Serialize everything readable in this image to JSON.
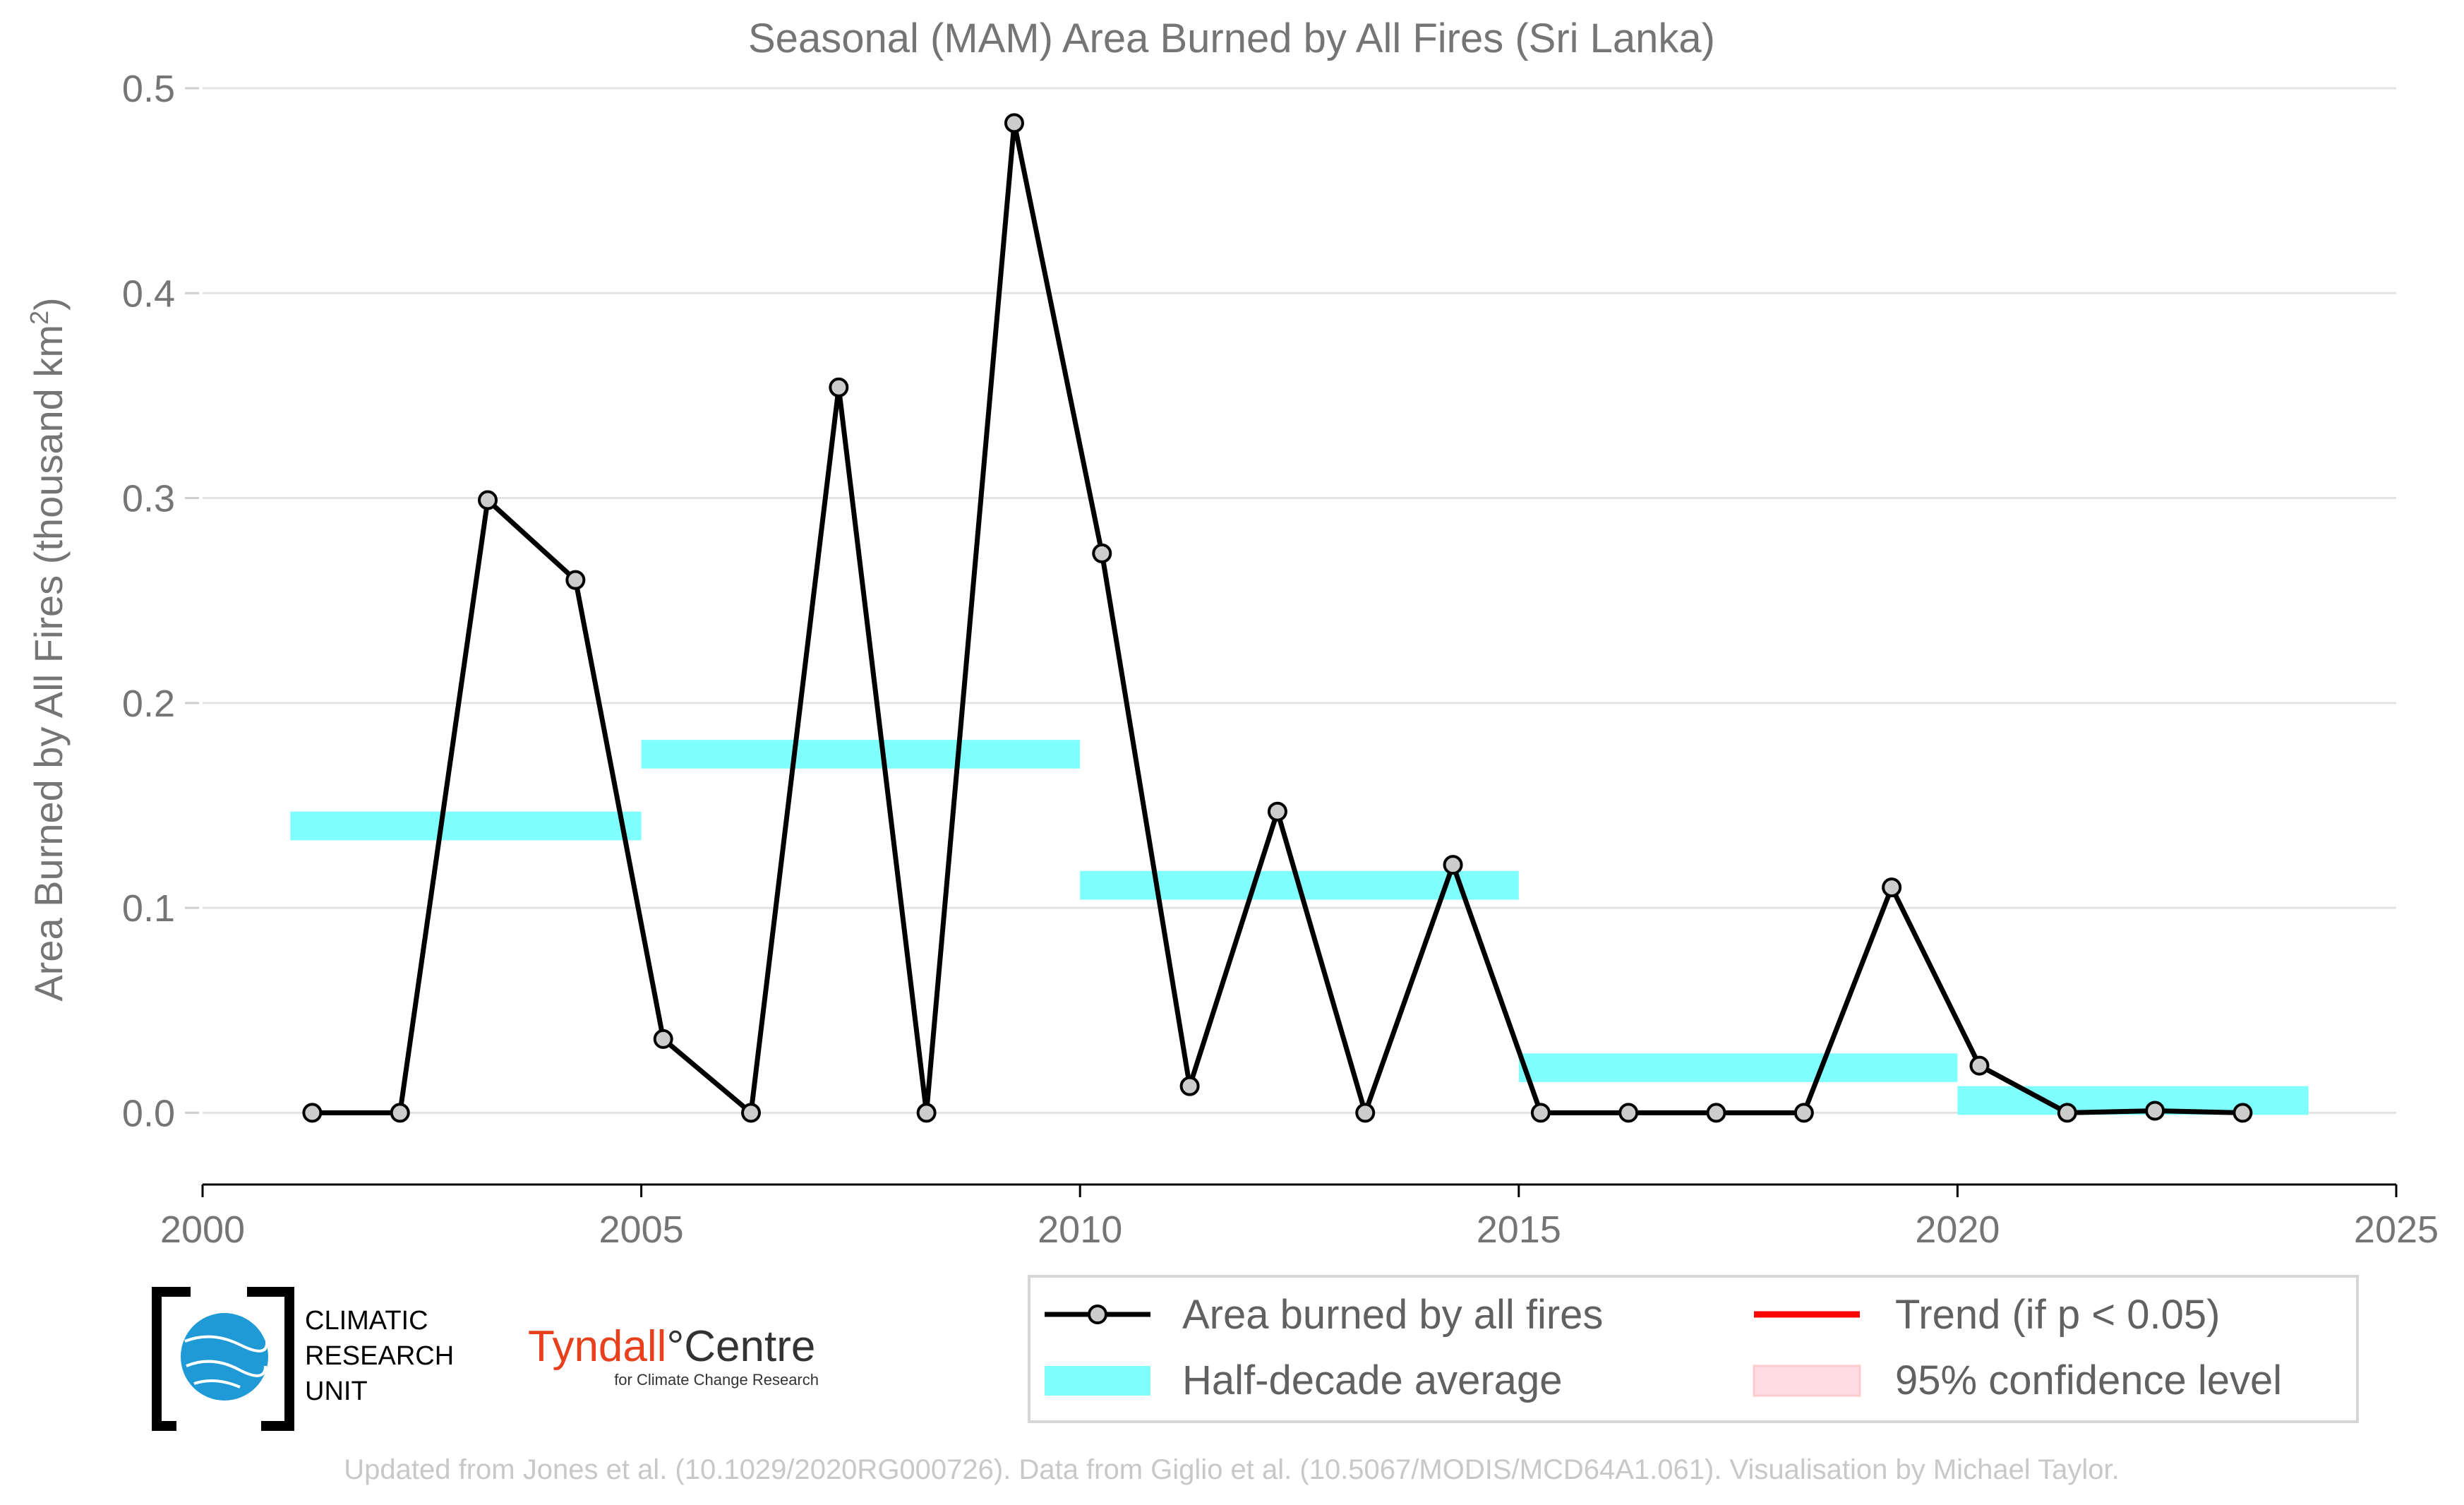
{
  "chart_data": {
    "type": "line",
    "title": "Seasonal (MAM) Area Burned by All Fires (Sri Lanka)",
    "ylabel": "Area Burned by All Fires (thousand km",
    "ylabel_sup": "2",
    "ylabel_end": ")",
    "xlim": [
      2000,
      2025
    ],
    "ylim": [
      -0.035,
      0.5
    ],
    "x_ticks": [
      2000,
      2005,
      2010,
      2015,
      2020,
      2025
    ],
    "y_ticks": [
      0.0,
      0.1,
      0.2,
      0.3,
      0.4,
      0.5
    ],
    "y_tick_labels": [
      "0.0",
      "0.1",
      "0.2",
      "0.3",
      "0.4",
      "0.5"
    ],
    "grid": "horizontal",
    "legend_position": "bottom-right",
    "series": [
      {
        "name": "Area burned by all fires",
        "color": "#000000",
        "marker_fill": "#cccccc",
        "x": [
          2001.25,
          2002.25,
          2003.25,
          2004.25,
          2005.25,
          2006.25,
          2007.25,
          2008.25,
          2009.25,
          2010.25,
          2011.25,
          2012.25,
          2013.25,
          2014.25,
          2015.25,
          2016.25,
          2017.25,
          2018.25,
          2019.25,
          2020.25,
          2021.25,
          2022.25,
          2023.25
        ],
        "values": [
          0.0,
          0.0,
          0.299,
          0.26,
          0.036,
          0.0,
          0.354,
          0.0,
          0.483,
          0.273,
          0.013,
          0.147,
          0.0,
          0.121,
          0.0,
          0.0,
          0.0,
          0.0,
          0.11,
          0.023,
          0.0,
          0.001,
          0.0
        ]
      }
    ],
    "half_decade_average": {
      "name": "Half-decade average",
      "color": "#80ffff",
      "segments": [
        {
          "start": 2001,
          "end": 2005,
          "value": 0.14
        },
        {
          "start": 2005,
          "end": 2010,
          "value": 0.175
        },
        {
          "start": 2010,
          "end": 2015,
          "value": 0.111
        },
        {
          "start": 2015,
          "end": 2020,
          "value": 0.022
        },
        {
          "start": 2020,
          "end": 2024,
          "value": 0.006
        }
      ]
    },
    "legend": [
      {
        "label": "Area burned by all fires",
        "kind": "line-marker",
        "color": "#000000"
      },
      {
        "label": "Trend (if p < 0.05)",
        "kind": "line",
        "color": "#ff0000"
      },
      {
        "label": "Half-decade average",
        "kind": "band",
        "color": "#80ffff"
      },
      {
        "label": "95% confidence level",
        "kind": "band",
        "color": "#ffdde0"
      }
    ]
  },
  "logos": {
    "cru": [
      "CLIMATIC",
      "RESEARCH",
      "UNIT"
    ],
    "tyndall_name": "Tyndall",
    "tyndall_suffix": "°Centre",
    "tyndall_sub": "for Climate Change Research"
  },
  "footer": "Updated from Jones et al. (10.1029/2020RG000726). Data from Giglio et al. (10.5067/MODIS/MCD64A1.061). Visualisation by Michael Taylor."
}
